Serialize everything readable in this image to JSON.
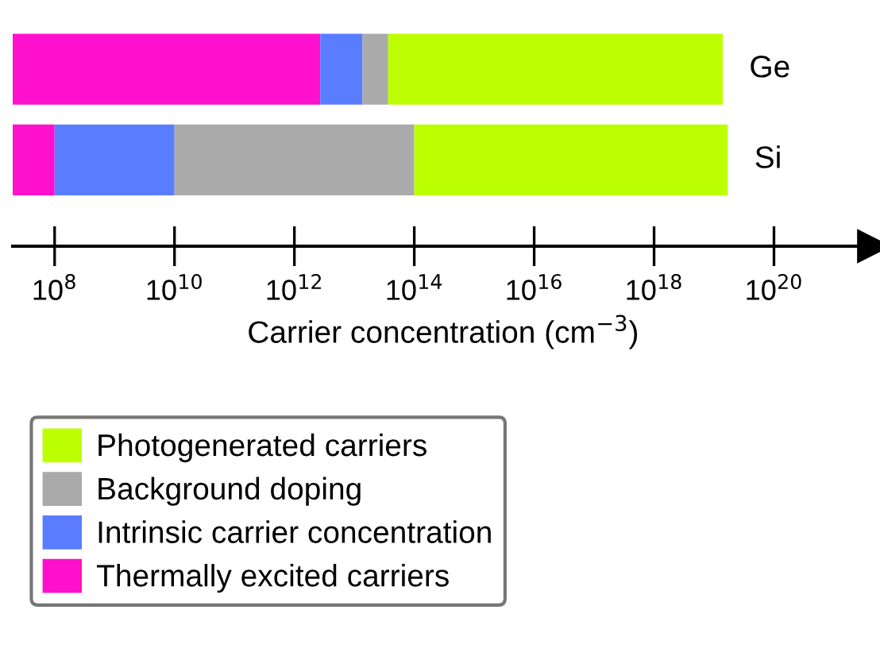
{
  "chart_data": {
    "type": "bar",
    "orientation": "horizontal",
    "stacked": true,
    "xlabel": "Carrier concentration (cm$^{−3}$)",
    "categories": [
      "Ge",
      "Si"
    ],
    "series": [
      {
        "name": "Thermally excited carriers",
        "color": "#ff10cc",
        "values": [
          2700000000000.0,
          100000000.0
        ]
      },
      {
        "name": "Intrinsic carrier concentration",
        "color": "#5a7dff",
        "values": [
          11000000000000.0,
          9900000000.0
        ]
      },
      {
        "name": "Background doping",
        "color": "#aaaaaa",
        "values": [
          23000000000000.0,
          100000000000000.0
        ]
      },
      {
        "name": "Photogenerated carriers",
        "color": "#bbff00",
        "values": [
          1.4e+19,
          1.7e+19
        ]
      }
    ],
    "log": "x",
    "xlim": [
      20000000.0,
      4.6e+21
    ],
    "xticks": [
      {
        "value": 100000000.0,
        "label": "10$^{8}$"
      },
      {
        "value": 10000000000.0,
        "label": "10$^{10}$"
      },
      {
        "value": 1000000000000.0,
        "label": "10$^{12}$"
      },
      {
        "value": 100000000000000.0,
        "label": "10$^{14}$"
      },
      {
        "value": 1e+16,
        "label": "10$^{16}$"
      },
      {
        "value": 1e+18,
        "label": "10$^{18}$"
      },
      {
        "value": 1e+20,
        "label": "10$^{20}$"
      }
    ],
    "grid": false,
    "legend": "bottom"
  }
}
